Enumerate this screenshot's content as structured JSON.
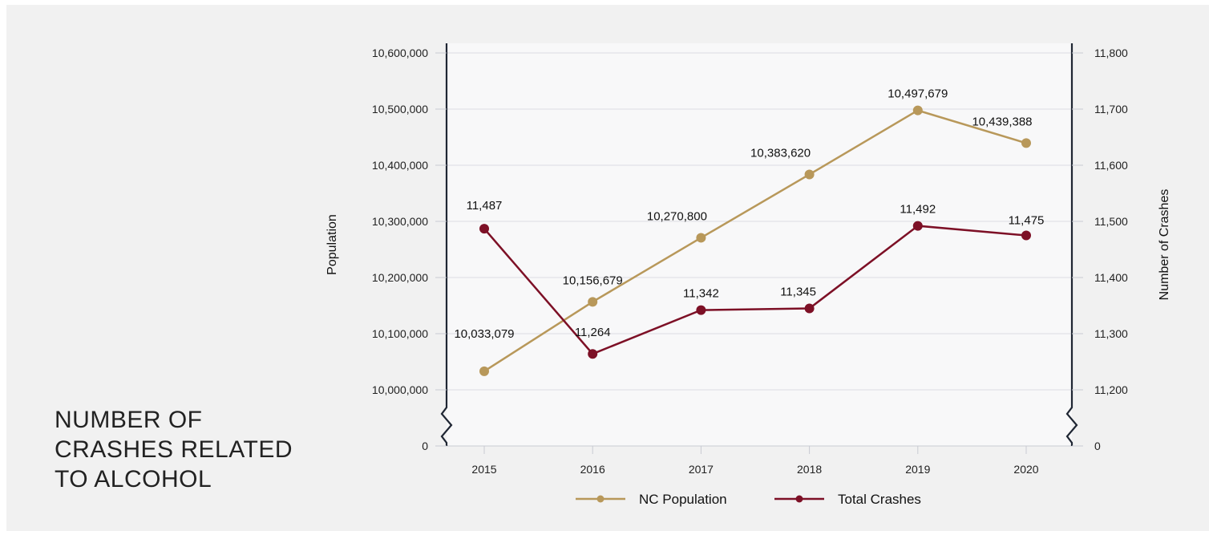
{
  "title": "NUMBER OF CRASHES RELATED TO ALCOHOL",
  "chart_data": {
    "type": "line",
    "title": "NUMBER OF CRASHES RELATED TO ALCOHOL",
    "categories": [
      "2015",
      "2016",
      "2017",
      "2018",
      "2019",
      "2020"
    ],
    "ylabel": "Population",
    "y2label": "Number of Crashes",
    "ylim": [
      10000000,
      10600000
    ],
    "y2lim": [
      11200,
      11800
    ],
    "axis_break": true,
    "yticks": [
      "0",
      "10,000,000",
      "10,100,000",
      "10,200,000",
      "10,300,000",
      "10,400,000",
      "10,500,000",
      "10,600,000"
    ],
    "y2ticks": [
      "0",
      "11,200",
      "11,300",
      "11,400",
      "11,500",
      "11,600",
      "11,700",
      "11,800"
    ],
    "grid": true,
    "legend_position": "bottom",
    "series": [
      {
        "name": "NC Population",
        "axis": "left",
        "color": "#b8985a",
        "values": [
          10033079,
          10156679,
          10270800,
          10383620,
          10497679,
          10439388
        ],
        "labels": [
          "10,033,079",
          "10,156,679",
          "10,270,800",
          "10,383,620",
          "10,497,679",
          "10,439,388"
        ]
      },
      {
        "name": "Total Crashes",
        "axis": "right",
        "color": "#7d1026",
        "values": [
          11487,
          11264,
          11342,
          11345,
          11492,
          11475
        ],
        "labels": [
          "11,487",
          "11,264",
          "11,342",
          "11,345",
          "11,492",
          "11,475"
        ]
      }
    ]
  }
}
